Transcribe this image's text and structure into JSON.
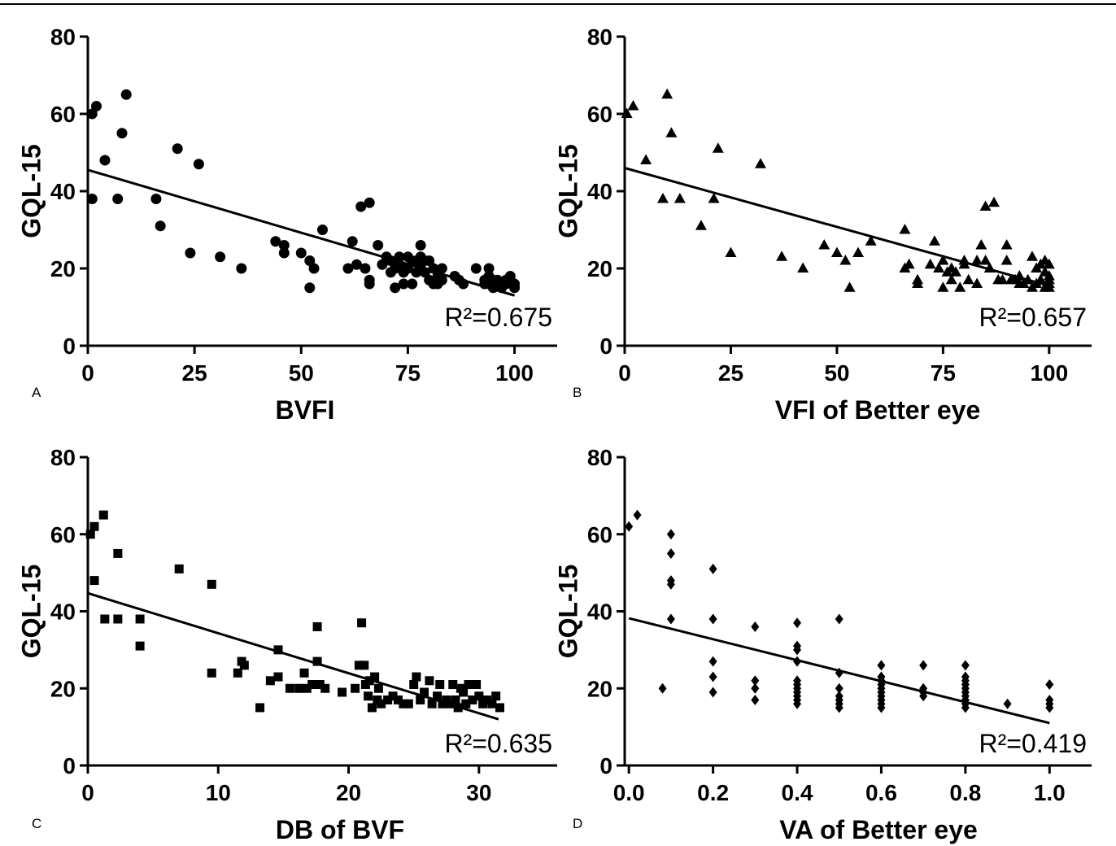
{
  "chart_data": [
    {
      "type": "scatter",
      "panel_label": "A",
      "xlabel": "BVFI",
      "ylabel": "GQL-15",
      "xlim": [
        0,
        110
      ],
      "ylim": [
        0,
        80
      ],
      "grid": false,
      "x_tick_values": [
        0,
        25,
        50,
        75,
        100
      ],
      "x_tick_labels": [
        "0",
        "25",
        "50",
        "75",
        "100"
      ],
      "y_tick_values": [
        0,
        20,
        40,
        60,
        80
      ],
      "y_tick_labels": [
        "0",
        "20",
        "40",
        "60",
        "80"
      ],
      "marker": "circle",
      "color": "#000000",
      "points": [
        [
          1,
          60
        ],
        [
          2,
          62
        ],
        [
          9,
          65
        ],
        [
          8,
          55
        ],
        [
          4,
          48
        ],
        [
          1,
          38
        ],
        [
          7,
          38
        ],
        [
          21,
          51
        ],
        [
          26,
          47
        ],
        [
          16,
          38
        ],
        [
          17,
          31
        ],
        [
          24,
          24
        ],
        [
          31,
          23
        ],
        [
          36,
          20
        ],
        [
          44,
          27
        ],
        [
          46,
          26
        ],
        [
          46,
          24
        ],
        [
          50,
          24
        ],
        [
          52,
          22
        ],
        [
          53,
          20
        ],
        [
          52,
          15
        ],
        [
          55,
          30
        ],
        [
          61,
          20
        ],
        [
          62,
          27
        ],
        [
          63,
          21
        ],
        [
          64,
          36
        ],
        [
          66,
          37
        ],
        [
          65,
          20
        ],
        [
          66,
          17
        ],
        [
          66,
          16
        ],
        [
          68,
          26
        ],
        [
          69,
          21
        ],
        [
          70,
          23
        ],
        [
          71,
          22
        ],
        [
          71,
          19
        ],
        [
          72,
          15
        ],
        [
          72,
          20
        ],
        [
          73,
          23
        ],
        [
          73,
          21
        ],
        [
          74,
          16
        ],
        [
          74,
          19
        ],
        [
          75,
          20
        ],
        [
          75,
          23
        ],
        [
          76,
          16
        ],
        [
          76,
          22
        ],
        [
          77,
          22
        ],
        [
          77,
          19
        ],
        [
          78,
          26
        ],
        [
          78,
          21
        ],
        [
          78,
          23
        ],
        [
          79,
          19
        ],
        [
          79,
          22
        ],
        [
          80,
          17
        ],
        [
          80,
          22
        ],
        [
          81,
          20
        ],
        [
          81,
          16
        ],
        [
          82,
          18
        ],
        [
          82,
          16
        ],
        [
          83,
          20
        ],
        [
          83,
          17
        ],
        [
          86,
          18
        ],
        [
          87,
          17
        ],
        [
          88,
          16
        ],
        [
          91,
          20
        ],
        [
          93,
          16
        ],
        [
          93,
          17
        ],
        [
          94,
          20
        ],
        [
          94,
          18
        ],
        [
          95,
          17
        ],
        [
          95,
          15
        ],
        [
          96,
          16
        ],
        [
          96,
          17
        ],
        [
          97,
          16
        ],
        [
          97,
          15
        ],
        [
          98,
          17
        ],
        [
          98,
          16
        ],
        [
          99,
          18
        ],
        [
          99,
          17
        ],
        [
          100,
          15
        ],
        [
          100,
          16
        ]
      ],
      "fit_line": {
        "x": [
          0,
          100
        ],
        "y": [
          45.5,
          13
        ]
      },
      "annotation": "R²=0.675"
    },
    {
      "type": "scatter",
      "panel_label": "B",
      "xlabel": "VFI of Better eye",
      "ylabel": "GQL-15",
      "xlim": [
        0,
        110
      ],
      "ylim": [
        0,
        80
      ],
      "grid": false,
      "x_tick_values": [
        0,
        25,
        50,
        75,
        100
      ],
      "x_tick_labels": [
        "0",
        "25",
        "50",
        "75",
        "100"
      ],
      "y_tick_values": [
        0,
        20,
        40,
        60,
        80
      ],
      "y_tick_labels": [
        "0",
        "20",
        "40",
        "60",
        "80"
      ],
      "marker": "triangle",
      "color": "#000000",
      "points": [
        [
          0.5,
          60
        ],
        [
          2,
          62
        ],
        [
          10,
          65
        ],
        [
          11,
          55
        ],
        [
          5,
          48
        ],
        [
          9,
          38
        ],
        [
          13,
          38
        ],
        [
          21,
          38
        ],
        [
          22,
          51
        ],
        [
          18,
          31
        ],
        [
          25,
          24
        ],
        [
          32,
          47
        ],
        [
          37,
          23
        ],
        [
          42,
          20
        ],
        [
          47,
          26
        ],
        [
          50,
          24
        ],
        [
          52,
          22
        ],
        [
          53,
          15
        ],
        [
          55,
          24
        ],
        [
          58,
          27
        ],
        [
          66,
          30
        ],
        [
          66,
          20
        ],
        [
          67,
          21
        ],
        [
          69,
          17
        ],
        [
          69,
          16
        ],
        [
          72,
          21
        ],
        [
          73,
          27
        ],
        [
          74,
          20
        ],
        [
          75,
          15
        ],
        [
          75,
          22
        ],
        [
          76,
          19
        ],
        [
          77,
          20
        ],
        [
          77,
          17
        ],
        [
          78,
          19
        ],
        [
          79,
          15
        ],
        [
          80,
          22
        ],
        [
          80,
          21
        ],
        [
          81,
          17
        ],
        [
          83,
          16
        ],
        [
          83,
          22
        ],
        [
          84,
          26
        ],
        [
          85,
          36
        ],
        [
          87,
          37
        ],
        [
          85,
          22
        ],
        [
          86,
          20
        ],
        [
          88,
          17
        ],
        [
          89,
          17
        ],
        [
          90,
          26
        ],
        [
          90,
          22
        ],
        [
          91,
          17
        ],
        [
          92,
          17
        ],
        [
          93,
          16
        ],
        [
          93,
          18
        ],
        [
          94,
          16
        ],
        [
          95,
          17
        ],
        [
          96,
          15
        ],
        [
          96,
          23
        ],
        [
          97,
          16
        ],
        [
          97,
          20
        ],
        [
          98,
          21
        ],
        [
          98,
          17
        ],
        [
          99,
          15
        ],
        [
          99,
          19
        ],
        [
          99,
          22
        ],
        [
          100,
          16
        ],
        [
          100,
          21
        ],
        [
          100,
          15
        ],
        [
          100,
          18
        ],
        [
          100,
          17
        ]
      ],
      "fit_line": {
        "x": [
          0,
          100
        ],
        "y": [
          46,
          15.5
        ]
      },
      "annotation": "R²=0.657"
    },
    {
      "type": "scatter",
      "panel_label": "C",
      "xlabel": "DB of BVF",
      "ylabel": "GQL-15",
      "xlim": [
        0,
        36
      ],
      "ylim": [
        0,
        80
      ],
      "grid": false,
      "x_tick_values": [
        0,
        10,
        20,
        30
      ],
      "x_tick_labels": [
        "0",
        "10",
        "20",
        "30"
      ],
      "y_tick_values": [
        0,
        20,
        40,
        60,
        80
      ],
      "y_tick_labels": [
        "0",
        "20",
        "40",
        "60",
        "80"
      ],
      "marker": "square",
      "color": "#000000",
      "points": [
        [
          0.2,
          60
        ],
        [
          0.5,
          62
        ],
        [
          1.2,
          65
        ],
        [
          0.5,
          48
        ],
        [
          1.3,
          38
        ],
        [
          2.3,
          55
        ],
        [
          2.3,
          38
        ],
        [
          4,
          38
        ],
        [
          4,
          31
        ],
        [
          7,
          51
        ],
        [
          9.5,
          47
        ],
        [
          9.5,
          24
        ],
        [
          11.5,
          24
        ],
        [
          11.8,
          27
        ],
        [
          12,
          26
        ],
        [
          13.2,
          15
        ],
        [
          14,
          22
        ],
        [
          14.6,
          30
        ],
        [
          14.6,
          23
        ],
        [
          15.5,
          20
        ],
        [
          16.2,
          20
        ],
        [
          16.6,
          24
        ],
        [
          16.8,
          20
        ],
        [
          17.2,
          21
        ],
        [
          17.6,
          36
        ],
        [
          17.6,
          27
        ],
        [
          17.8,
          21
        ],
        [
          18.2,
          20
        ],
        [
          19.5,
          19
        ],
        [
          20.5,
          20
        ],
        [
          20.8,
          26
        ],
        [
          21,
          37
        ],
        [
          21.2,
          26
        ],
        [
          21.3,
          21
        ],
        [
          21.5,
          18
        ],
        [
          21.6,
          22
        ],
        [
          21.8,
          15
        ],
        [
          22,
          23
        ],
        [
          22.2,
          17
        ],
        [
          22.3,
          20
        ],
        [
          22.5,
          16
        ],
        [
          23,
          17
        ],
        [
          23.4,
          18
        ],
        [
          23.8,
          17
        ],
        [
          24.2,
          16
        ],
        [
          24.6,
          16
        ],
        [
          25,
          21
        ],
        [
          25.2,
          23
        ],
        [
          25.5,
          17
        ],
        [
          25.8,
          19
        ],
        [
          26.2,
          22
        ],
        [
          26.4,
          16
        ],
        [
          26.8,
          18
        ],
        [
          27,
          21
        ],
        [
          27.2,
          16
        ],
        [
          27.5,
          17
        ],
        [
          27.8,
          16
        ],
        [
          28,
          21
        ],
        [
          28.2,
          17
        ],
        [
          28.4,
          15
        ],
        [
          28.6,
          20
        ],
        [
          28.8,
          19
        ],
        [
          29,
          16
        ],
        [
          29.2,
          21
        ],
        [
          29.5,
          17
        ],
        [
          29.8,
          21
        ],
        [
          30,
          18
        ],
        [
          30.3,
          16
        ],
        [
          30.6,
          17
        ],
        [
          31,
          16
        ],
        [
          31.3,
          18
        ],
        [
          31.6,
          15
        ]
      ],
      "fit_line": {
        "x": [
          0,
          31.5
        ],
        "y": [
          44.7,
          12
        ]
      },
      "annotation": "R²=0.635"
    },
    {
      "type": "scatter",
      "panel_label": "D",
      "xlabel": "VA of Better eye",
      "ylabel": "GQL-15",
      "xlim": [
        -0.01,
        1.1
      ],
      "ylim": [
        0,
        80
      ],
      "grid": false,
      "x_tick_values": [
        0,
        0.2,
        0.4,
        0.6,
        0.8,
        1.0
      ],
      "x_tick_labels": [
        "0.0",
        "0.2",
        "0.4",
        "0.6",
        "0.8",
        "1.0"
      ],
      "y_tick_values": [
        0,
        20,
        40,
        60,
        80
      ],
      "y_tick_labels": [
        "0",
        "20",
        "40",
        "60",
        "80"
      ],
      "marker": "diamond",
      "color": "#000000",
      "points": [
        [
          0,
          62
        ],
        [
          0.02,
          65
        ],
        [
          0.08,
          20
        ],
        [
          0.1,
          60
        ],
        [
          0.1,
          55
        ],
        [
          0.1,
          48
        ],
        [
          0.1,
          47
        ],
        [
          0.1,
          38
        ],
        [
          0.2,
          51
        ],
        [
          0.2,
          38
        ],
        [
          0.2,
          27
        ],
        [
          0.2,
          23
        ],
        [
          0.2,
          19
        ],
        [
          0.3,
          36
        ],
        [
          0.3,
          22
        ],
        [
          0.3,
          20
        ],
        [
          0.3,
          17
        ],
        [
          0.4,
          37
        ],
        [
          0.4,
          31
        ],
        [
          0.4,
          30
        ],
        [
          0.4,
          27
        ],
        [
          0.4,
          22
        ],
        [
          0.4,
          21
        ],
        [
          0.4,
          20
        ],
        [
          0.4,
          19
        ],
        [
          0.4,
          18
        ],
        [
          0.4,
          17
        ],
        [
          0.4,
          16
        ],
        [
          0.5,
          38
        ],
        [
          0.5,
          24
        ],
        [
          0.5,
          20
        ],
        [
          0.5,
          18
        ],
        [
          0.5,
          17
        ],
        [
          0.5,
          16
        ],
        [
          0.5,
          15
        ],
        [
          0.6,
          26
        ],
        [
          0.6,
          23
        ],
        [
          0.6,
          22
        ],
        [
          0.6,
          21
        ],
        [
          0.6,
          20
        ],
        [
          0.6,
          19
        ],
        [
          0.6,
          18
        ],
        [
          0.6,
          17
        ],
        [
          0.6,
          16
        ],
        [
          0.6,
          15
        ],
        [
          0.7,
          26
        ],
        [
          0.7,
          20
        ],
        [
          0.7,
          19
        ],
        [
          0.7,
          18
        ],
        [
          0.8,
          26
        ],
        [
          0.8,
          23
        ],
        [
          0.8,
          22
        ],
        [
          0.8,
          21
        ],
        [
          0.8,
          20
        ],
        [
          0.8,
          19
        ],
        [
          0.8,
          18
        ],
        [
          0.8,
          17
        ],
        [
          0.8,
          16
        ],
        [
          0.8,
          15
        ],
        [
          0.9,
          16
        ],
        [
          1.0,
          21
        ],
        [
          1.0,
          17
        ],
        [
          1.0,
          16
        ],
        [
          1.0,
          15
        ]
      ],
      "fit_line": {
        "x": [
          0,
          1.0
        ],
        "y": [
          38.2,
          11
        ]
      },
      "annotation": "R²=0.419"
    }
  ]
}
